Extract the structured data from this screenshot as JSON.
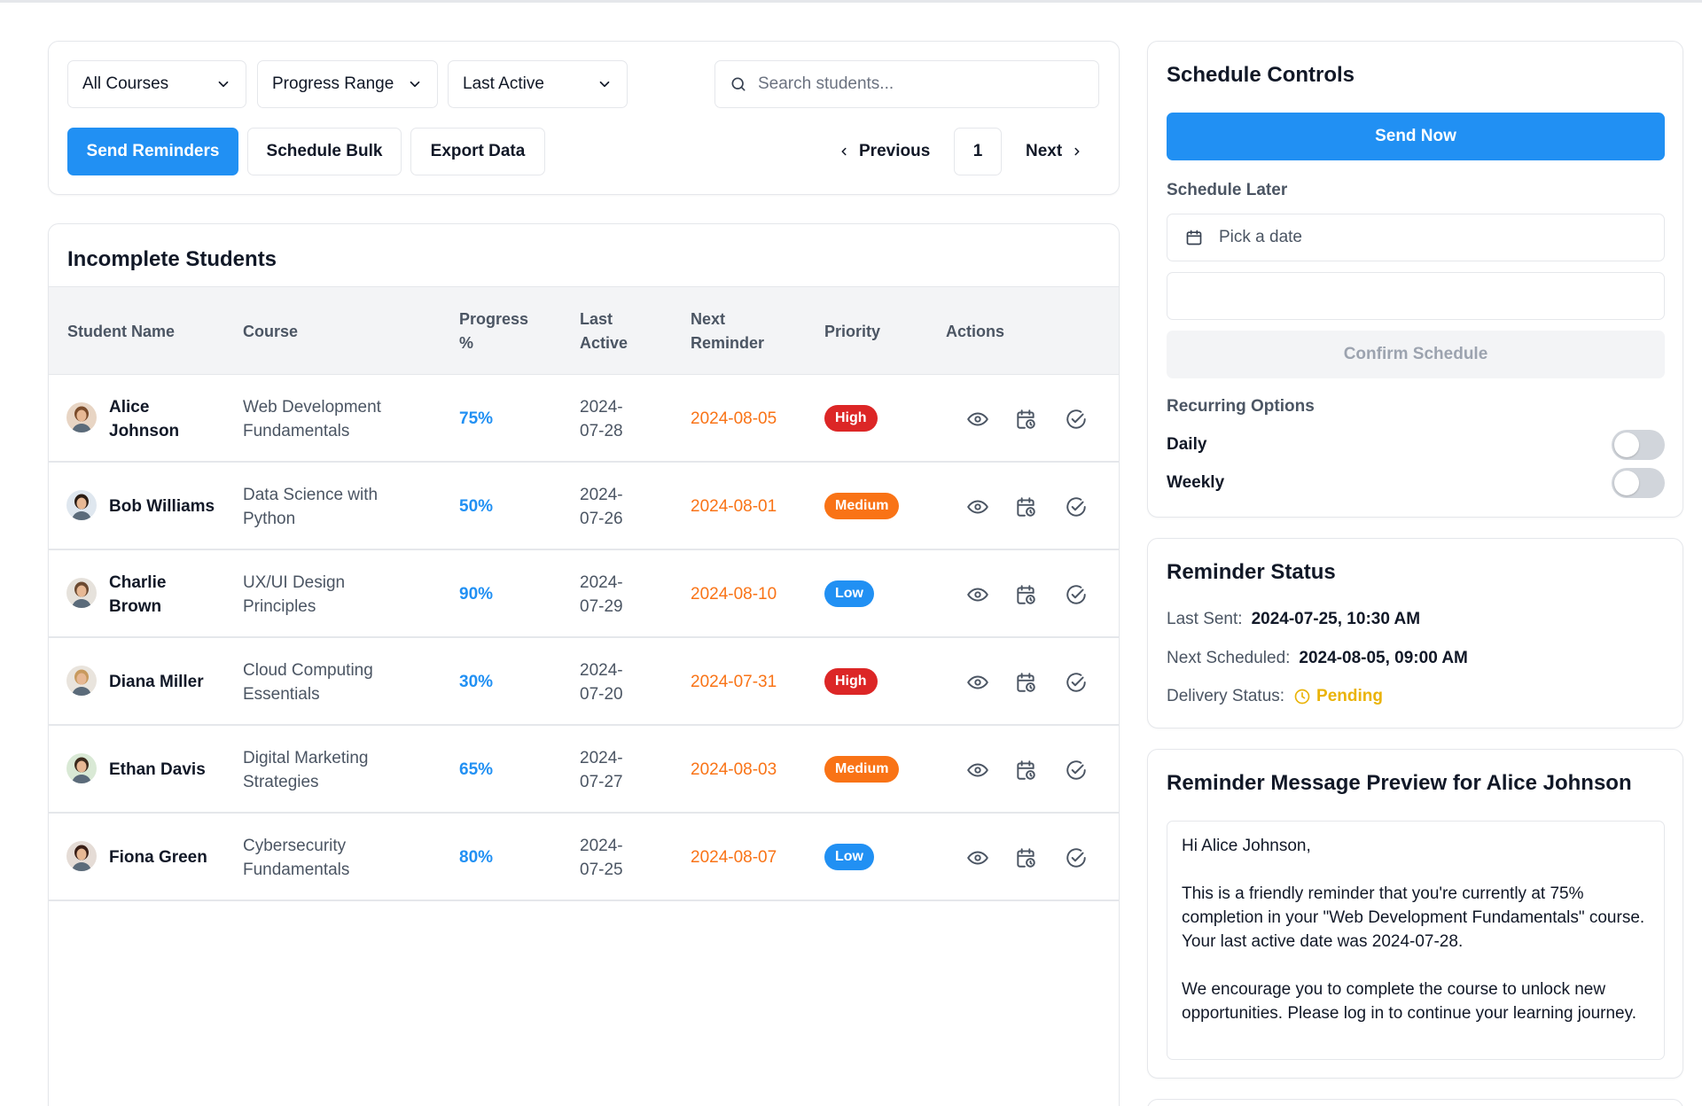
{
  "toolbar": {
    "filter_courses": "All Courses",
    "filter_progress": "Progress Range",
    "filter_last_active": "Last Active",
    "search_placeholder": "Search students...",
    "send_reminders": "Send Reminders",
    "schedule_bulk": "Schedule Bulk",
    "export_data": "Export Data",
    "previous": "Previous",
    "page": "1",
    "next": "Next"
  },
  "table": {
    "title": "Incomplete Students",
    "headers": {
      "student_name": "Student Name",
      "course": "Course",
      "progress": "Progress %",
      "last_active": "Last Active",
      "next_reminder": "Next Reminder",
      "priority": "Priority",
      "actions": "Actions"
    },
    "rows": [
      {
        "name": "Alice Johnson",
        "course": "Web Development Fundamentals",
        "progress": "75%",
        "last_active": "2024-07-28",
        "next_reminder": "2024-08-05",
        "priority": "High",
        "avatar_bg": "#e8d5c4",
        "hair": "#7a4b2a"
      },
      {
        "name": "Bob Williams",
        "course": "Data Science with Python",
        "progress": "50%",
        "last_active": "2024-07-26",
        "next_reminder": "2024-08-01",
        "priority": "Medium",
        "avatar_bg": "#dfe7ef",
        "hair": "#2b1d14"
      },
      {
        "name": "Charlie Brown",
        "course": "UX/UI Design Principles",
        "progress": "90%",
        "last_active": "2024-07-29",
        "next_reminder": "2024-08-10",
        "priority": "Low",
        "avatar_bg": "#e6e2dc",
        "hair": "#6b4a32"
      },
      {
        "name": "Diana Miller",
        "course": "Cloud Computing Essentials",
        "progress": "30%",
        "last_active": "2024-07-20",
        "next_reminder": "2024-07-31",
        "priority": "High",
        "avatar_bg": "#e9e4dd",
        "hair": "#c89a5e"
      },
      {
        "name": "Ethan Davis",
        "course": "Digital Marketing Strategies",
        "progress": "65%",
        "last_active": "2024-07-27",
        "next_reminder": "2024-08-03",
        "priority": "Medium",
        "avatar_bg": "#d9e9d5",
        "hair": "#3b2a1c"
      },
      {
        "name": "Fiona Green",
        "course": "Cybersecurity Fundamentals",
        "progress": "80%",
        "last_active": "2024-07-25",
        "next_reminder": "2024-08-07",
        "priority": "Low",
        "avatar_bg": "#e5dcd6",
        "hair": "#3a1f16"
      }
    ],
    "priority_colors": {
      "High": "#dc2626",
      "Medium": "#f97316",
      "Low": "#2190f3"
    },
    "action_icons": [
      "eye-icon",
      "calendar-clock-icon",
      "check-circle-icon"
    ]
  },
  "schedule": {
    "title": "Schedule Controls",
    "send_now": "Send Now",
    "schedule_later": "Schedule Later",
    "date_placeholder": "Pick a date",
    "time_value": "",
    "confirm": "Confirm Schedule",
    "recurring_label": "Recurring Options",
    "daily": "Daily",
    "weekly": "Weekly",
    "daily_on": false,
    "weekly_on": false
  },
  "status": {
    "title": "Reminder Status",
    "last_sent_label": "Last Sent:",
    "last_sent_value": "2024-07-25, 10:30 AM",
    "next_scheduled_label": "Next Scheduled:",
    "next_scheduled_value": "2024-08-05, 09:00 AM",
    "delivery_label": "Delivery Status:",
    "delivery_value": "Pending"
  },
  "preview": {
    "title": "Reminder Message Preview for Alice Johnson",
    "greeting": "Hi Alice Johnson,",
    "paragraph1": "This is a friendly reminder that you're currently at 75% completion in your \"Web Development Fundamentals\" course. Your last active date was 2024-07-28.",
    "paragraph2": "We encourage you to complete the course to unlock new opportunities. Please log in to continue your learning journey."
  },
  "colors": {
    "accent": "#2190f3",
    "warning": "#f97316",
    "pending": "#eab308"
  }
}
